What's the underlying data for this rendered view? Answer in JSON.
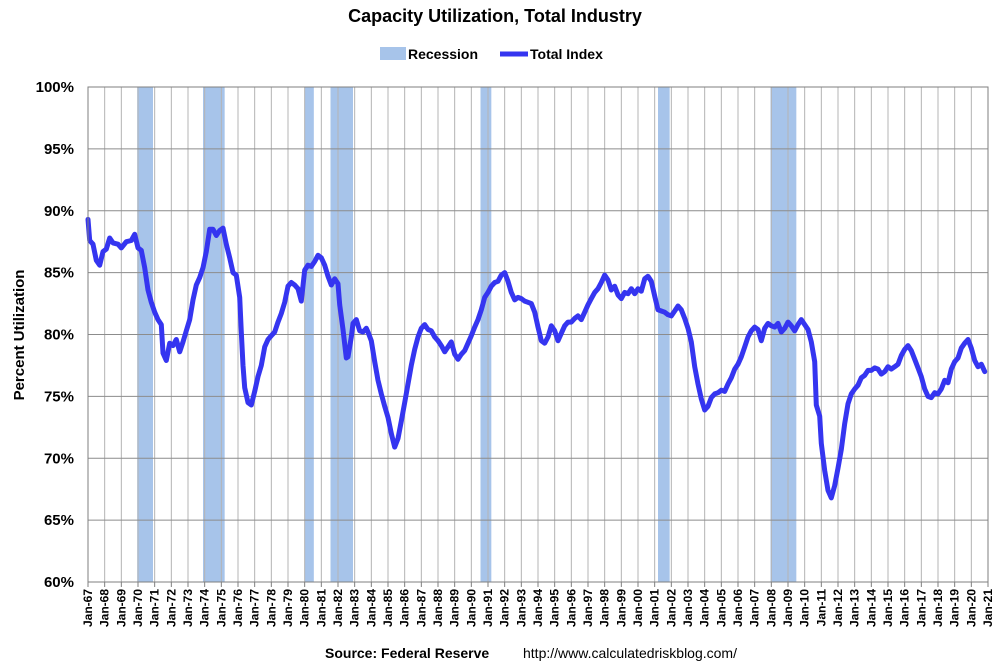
{
  "chart_data": {
    "type": "line",
    "title": "Capacity Utilization, Total Industry",
    "ylabel": "Percent Utilization",
    "xlabel": "",
    "ylim": [
      60,
      100
    ],
    "xlim": [
      "Jan-67",
      "Jan-21"
    ],
    "yticks": [
      "60%",
      "65%",
      "70%",
      "75%",
      "80%",
      "85%",
      "90%",
      "95%",
      "100%"
    ],
    "xticks": [
      "Jan-67",
      "Jan-68",
      "Jan-69",
      "Jan-70",
      "Jan-71",
      "Jan-72",
      "Jan-73",
      "Jan-74",
      "Jan-75",
      "Jan-76",
      "Jan-77",
      "Jan-78",
      "Jan-79",
      "Jan-80",
      "Jan-81",
      "Jan-82",
      "Jan-83",
      "Jan-84",
      "Jan-85",
      "Jan-86",
      "Jan-87",
      "Jan-88",
      "Jan-89",
      "Jan-90",
      "Jan-91",
      "Jan-92",
      "Jan-93",
      "Jan-94",
      "Jan-95",
      "Jan-96",
      "Jan-97",
      "Jan-98",
      "Jan-99",
      "Jan-00",
      "Jan-01",
      "Jan-02",
      "Jan-03",
      "Jan-04",
      "Jan-05",
      "Jan-06",
      "Jan-07",
      "Jan-08",
      "Jan-09",
      "Jan-10",
      "Jan-11",
      "Jan-12",
      "Jan-13",
      "Jan-14",
      "Jan-15",
      "Jan-16",
      "Jan-17",
      "Jan-18",
      "Jan-19",
      "Jan-20",
      "Jan-21"
    ],
    "grid": true,
    "legend_placement": "top-center",
    "legend": [
      {
        "label": "Recession",
        "color": "#a7c4ea"
      },
      {
        "label": "Total Index",
        "color": "#3535f0"
      }
    ],
    "recessions": [
      {
        "start": 1969.95,
        "end": 1970.9
      },
      {
        "start": 1973.9,
        "end": 1975.2
      },
      {
        "start": 1980.0,
        "end": 1980.55
      },
      {
        "start": 1981.55,
        "end": 1982.9
      },
      {
        "start": 1990.55,
        "end": 1991.2
      },
      {
        "start": 2001.2,
        "end": 2001.9
      },
      {
        "start": 2007.95,
        "end": 2009.5
      }
    ],
    "series": [
      {
        "name": "Total Index",
        "color": "#3535f0",
        "points": [
          [
            1967.0,
            89.3
          ],
          [
            1967.1,
            87.6
          ],
          [
            1967.3,
            87.3
          ],
          [
            1967.5,
            86.0
          ],
          [
            1967.7,
            85.6
          ],
          [
            1967.9,
            86.7
          ],
          [
            1968.1,
            86.9
          ],
          [
            1968.3,
            87.8
          ],
          [
            1968.5,
            87.4
          ],
          [
            1968.8,
            87.3
          ],
          [
            1969.0,
            87.0
          ],
          [
            1969.3,
            87.5
          ],
          [
            1969.6,
            87.6
          ],
          [
            1969.8,
            88.1
          ],
          [
            1970.0,
            87.0
          ],
          [
            1970.2,
            86.8
          ],
          [
            1970.4,
            85.4
          ],
          [
            1970.6,
            83.6
          ],
          [
            1970.8,
            82.6
          ],
          [
            1971.0,
            81.8
          ],
          [
            1971.2,
            81.2
          ],
          [
            1971.4,
            80.8
          ],
          [
            1971.5,
            78.5
          ],
          [
            1971.7,
            77.9
          ],
          [
            1971.9,
            79.3
          ],
          [
            1972.1,
            79.1
          ],
          [
            1972.3,
            79.6
          ],
          [
            1972.5,
            78.6
          ],
          [
            1972.7,
            79.4
          ],
          [
            1972.9,
            80.3
          ],
          [
            1973.1,
            81.2
          ],
          [
            1973.3,
            82.8
          ],
          [
            1973.5,
            84.0
          ],
          [
            1973.7,
            84.6
          ],
          [
            1973.9,
            85.4
          ],
          [
            1974.1,
            86.7
          ],
          [
            1974.3,
            88.5
          ],
          [
            1974.5,
            88.5
          ],
          [
            1974.7,
            88.0
          ],
          [
            1974.9,
            88.4
          ],
          [
            1975.1,
            88.6
          ],
          [
            1975.3,
            87.3
          ],
          [
            1975.5,
            86.2
          ],
          [
            1975.7,
            85.0
          ],
          [
            1975.9,
            84.8
          ],
          [
            1976.1,
            83.0
          ],
          [
            1976.2,
            80.2
          ],
          [
            1976.3,
            77.5
          ],
          [
            1976.4,
            75.7
          ],
          [
            1976.6,
            74.5
          ],
          [
            1976.8,
            74.3
          ],
          [
            1977.0,
            75.4
          ],
          [
            1977.2,
            76.6
          ],
          [
            1977.4,
            77.5
          ],
          [
            1977.6,
            79.0
          ],
          [
            1977.8,
            79.6
          ],
          [
            1978.0,
            79.9
          ],
          [
            1978.2,
            80.2
          ],
          [
            1978.4,
            81.0
          ],
          [
            1978.6,
            81.7
          ],
          [
            1978.8,
            82.6
          ],
          [
            1979.0,
            83.9
          ],
          [
            1979.2,
            84.2
          ],
          [
            1979.4,
            84.0
          ],
          [
            1979.6,
            83.7
          ],
          [
            1979.8,
            82.7
          ],
          [
            1980.0,
            85.2
          ],
          [
            1980.2,
            85.6
          ],
          [
            1980.4,
            85.5
          ],
          [
            1980.6,
            85.9
          ],
          [
            1980.8,
            86.4
          ],
          [
            1981.0,
            86.2
          ],
          [
            1981.2,
            85.6
          ],
          [
            1981.4,
            84.7
          ],
          [
            1981.6,
            84.0
          ],
          [
            1981.8,
            84.5
          ],
          [
            1982.0,
            84.1
          ],
          [
            1982.1,
            82.4
          ],
          [
            1982.3,
            80.4
          ],
          [
            1982.5,
            78.1
          ],
          [
            1982.6,
            78.2
          ],
          [
            1982.8,
            79.8
          ],
          [
            1982.9,
            80.9
          ],
          [
            1983.1,
            81.2
          ],
          [
            1983.3,
            80.3
          ],
          [
            1983.5,
            80.2
          ],
          [
            1983.7,
            80.5
          ],
          [
            1983.8,
            80.2
          ],
          [
            1984.0,
            79.5
          ],
          [
            1984.2,
            77.8
          ],
          [
            1984.4,
            76.3
          ],
          [
            1984.6,
            75.2
          ],
          [
            1984.8,
            74.2
          ],
          [
            1985.0,
            73.3
          ],
          [
            1985.2,
            72.0
          ],
          [
            1985.4,
            70.9
          ],
          [
            1985.6,
            71.6
          ],
          [
            1985.8,
            73.0
          ],
          [
            1986.0,
            74.5
          ],
          [
            1986.2,
            76.0
          ],
          [
            1986.4,
            77.5
          ],
          [
            1986.6,
            78.8
          ],
          [
            1986.8,
            79.8
          ],
          [
            1987.0,
            80.5
          ],
          [
            1987.2,
            80.8
          ],
          [
            1987.4,
            80.4
          ],
          [
            1987.6,
            80.3
          ],
          [
            1987.8,
            79.8
          ],
          [
            1988.0,
            79.5
          ],
          [
            1988.2,
            79.1
          ],
          [
            1988.4,
            78.6
          ],
          [
            1988.6,
            79.0
          ],
          [
            1988.8,
            79.4
          ],
          [
            1989.0,
            78.4
          ],
          [
            1989.2,
            78.0
          ],
          [
            1989.4,
            78.4
          ],
          [
            1989.6,
            78.7
          ],
          [
            1989.8,
            79.3
          ],
          [
            1990.0,
            79.9
          ],
          [
            1990.2,
            80.6
          ],
          [
            1990.4,
            81.2
          ],
          [
            1990.6,
            82.0
          ],
          [
            1990.8,
            83.0
          ],
          [
            1991.0,
            83.4
          ],
          [
            1991.2,
            83.9
          ],
          [
            1991.4,
            84.2
          ],
          [
            1991.6,
            84.3
          ],
          [
            1991.8,
            84.8
          ],
          [
            1992.0,
            85.0
          ],
          [
            1992.2,
            84.3
          ],
          [
            1992.4,
            83.4
          ],
          [
            1992.6,
            82.8
          ],
          [
            1992.8,
            83.0
          ],
          [
            1993.0,
            82.9
          ],
          [
            1993.2,
            82.7
          ],
          [
            1993.4,
            82.6
          ],
          [
            1993.6,
            82.5
          ],
          [
            1993.8,
            81.8
          ],
          [
            1994.0,
            80.6
          ],
          [
            1994.2,
            79.5
          ],
          [
            1994.4,
            79.3
          ],
          [
            1994.6,
            79.8
          ],
          [
            1994.8,
            80.7
          ],
          [
            1995.0,
            80.3
          ],
          [
            1995.2,
            79.5
          ],
          [
            1995.4,
            80.1
          ],
          [
            1995.6,
            80.7
          ],
          [
            1995.8,
            81.0
          ],
          [
            1996.0,
            81.0
          ],
          [
            1996.2,
            81.3
          ],
          [
            1996.4,
            81.5
          ],
          [
            1996.6,
            81.2
          ],
          [
            1996.8,
            81.8
          ],
          [
            1997.0,
            82.4
          ],
          [
            1997.2,
            82.9
          ],
          [
            1997.4,
            83.4
          ],
          [
            1997.6,
            83.7
          ],
          [
            1997.8,
            84.2
          ],
          [
            1998.0,
            84.8
          ],
          [
            1998.2,
            84.4
          ],
          [
            1998.4,
            83.6
          ],
          [
            1998.6,
            83.9
          ],
          [
            1998.8,
            83.2
          ],
          [
            1999.0,
            82.9
          ],
          [
            1999.2,
            83.4
          ],
          [
            1999.4,
            83.3
          ],
          [
            1999.6,
            83.7
          ],
          [
            1999.8,
            83.3
          ],
          [
            2000.0,
            83.7
          ],
          [
            2000.2,
            83.5
          ],
          [
            2000.4,
            84.5
          ],
          [
            2000.6,
            84.7
          ],
          [
            2000.8,
            84.3
          ],
          [
            2001.0,
            83.1
          ],
          [
            2001.2,
            82.0
          ],
          [
            2001.4,
            81.9
          ],
          [
            2001.6,
            81.8
          ],
          [
            2001.8,
            81.6
          ],
          [
            2002.0,
            81.5
          ],
          [
            2002.2,
            81.9
          ],
          [
            2002.4,
            82.3
          ],
          [
            2002.6,
            82.0
          ],
          [
            2002.8,
            81.3
          ],
          [
            2003.0,
            80.5
          ],
          [
            2003.2,
            79.4
          ],
          [
            2003.4,
            77.4
          ],
          [
            2003.6,
            76.0
          ],
          [
            2003.8,
            74.8
          ],
          [
            2004.0,
            73.9
          ],
          [
            2004.2,
            74.2
          ],
          [
            2004.4,
            74.9
          ],
          [
            2004.6,
            75.2
          ],
          [
            2004.8,
            75.3
          ],
          [
            2005.0,
            75.5
          ],
          [
            2005.2,
            75.4
          ],
          [
            2005.4,
            76.0
          ],
          [
            2005.6,
            76.5
          ],
          [
            2005.8,
            77.2
          ],
          [
            2006.0,
            77.6
          ],
          [
            2006.2,
            78.2
          ],
          [
            2006.4,
            79.0
          ],
          [
            2006.6,
            79.8
          ],
          [
            2006.8,
            80.3
          ],
          [
            2007.0,
            80.6
          ],
          [
            2007.2,
            80.4
          ],
          [
            2007.4,
            79.5
          ],
          [
            2007.6,
            80.5
          ],
          [
            2007.8,
            80.9
          ],
          [
            2008.0,
            80.7
          ],
          [
            2008.2,
            80.6
          ],
          [
            2008.4,
            80.9
          ],
          [
            2008.6,
            80.2
          ],
          [
            2008.8,
            80.5
          ],
          [
            2009.0,
            81.0
          ],
          [
            2009.2,
            80.7
          ],
          [
            2009.4,
            80.3
          ],
          [
            2009.6,
            80.8
          ],
          [
            2009.8,
            81.2
          ],
          [
            2010.0,
            80.8
          ],
          [
            2010.2,
            80.4
          ],
          [
            2010.4,
            79.4
          ],
          [
            2010.6,
            77.8
          ],
          [
            2010.7,
            74.3
          ],
          [
            2010.9,
            73.4
          ],
          [
            2011.0,
            71.2
          ],
          [
            2011.2,
            69.0
          ],
          [
            2011.4,
            67.4
          ],
          [
            2011.6,
            66.8
          ],
          [
            2011.8,
            67.8
          ],
          [
            2012.0,
            69.2
          ],
          [
            2012.2,
            70.7
          ],
          [
            2012.4,
            72.8
          ],
          [
            2012.6,
            74.4
          ],
          [
            2012.8,
            75.2
          ],
          [
            2013.0,
            75.6
          ],
          [
            2013.2,
            75.9
          ],
          [
            2013.4,
            76.5
          ],
          [
            2013.6,
            76.7
          ],
          [
            2013.8,
            77.1
          ],
          [
            2014.0,
            77.1
          ],
          [
            2014.2,
            77.3
          ],
          [
            2014.4,
            77.2
          ],
          [
            2014.6,
            76.8
          ],
          [
            2014.8,
            77.0
          ],
          [
            2015.0,
            77.4
          ],
          [
            2015.2,
            77.2
          ],
          [
            2015.4,
            77.4
          ],
          [
            2015.6,
            77.6
          ],
          [
            2015.8,
            78.3
          ],
          [
            2016.0,
            78.8
          ],
          [
            2016.2,
            79.1
          ],
          [
            2016.4,
            78.7
          ],
          [
            2016.6,
            78.0
          ],
          [
            2016.8,
            77.3
          ],
          [
            2017.0,
            76.6
          ],
          [
            2017.2,
            75.6
          ],
          [
            2017.4,
            75.0
          ],
          [
            2017.6,
            74.9
          ],
          [
            2017.8,
            75.3
          ],
          [
            2018.0,
            75.2
          ],
          [
            2018.2,
            75.6
          ],
          [
            2018.4,
            76.3
          ],
          [
            2018.6,
            76.1
          ],
          [
            2018.8,
            77.2
          ],
          [
            2019.0,
            77.8
          ],
          [
            2019.2,
            78.1
          ],
          [
            2019.4,
            78.9
          ],
          [
            2019.6,
            79.3
          ],
          [
            2019.8,
            79.6
          ],
          [
            2020.0,
            78.9
          ],
          [
            2020.2,
            77.9
          ],
          [
            2020.4,
            77.4
          ],
          [
            2020.6,
            77.6
          ],
          [
            2020.8,
            77.0
          ]
        ]
      }
    ],
    "source_label": "Source: Federal Reserve",
    "source_url": "http://www.calculatedriskblog.com/"
  }
}
